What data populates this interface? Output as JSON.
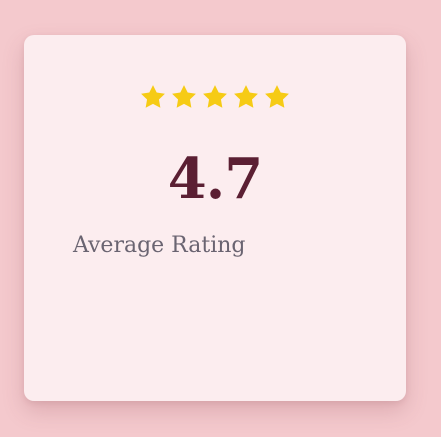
{
  "rating_card": {
    "star_icon": "star-icon",
    "star_count": 5,
    "star_color": "#f6cb15",
    "value": "4.7",
    "value_color": "#5b1f33",
    "label": "Average Rating"
  },
  "colors": {
    "background": "#f4c9cd",
    "card": "#fcedef",
    "label": "#6a6471"
  }
}
